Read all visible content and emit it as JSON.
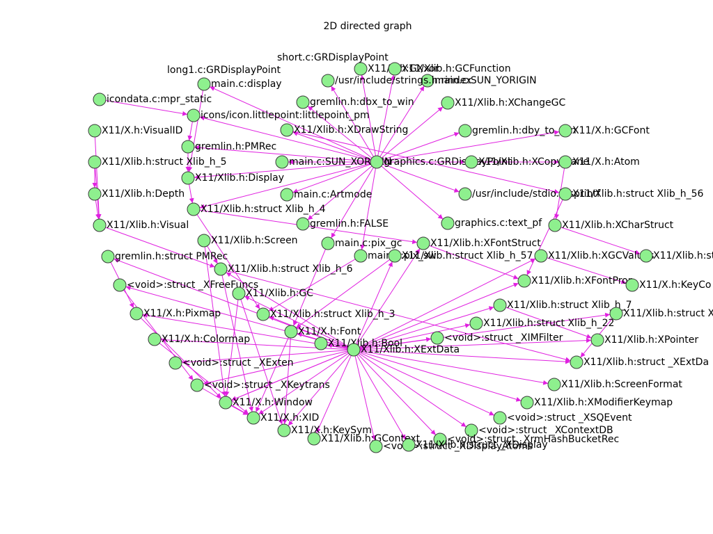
{
  "title": "2D directed graph",
  "nodes": [
    {
      "label": "short.c:GRDisplayPoint"
    },
    {
      "label": "long1.c:GRDisplayPoint"
    },
    {
      "label": "X11/X.h:GXxor"
    },
    {
      "label": "X11/Xlib.h:GCFunction"
    },
    {
      "label": "main.c:SUN_YORIGIN"
    },
    {
      "label": "/usr/include/strings.h:rindex"
    },
    {
      "label": "main.c:display"
    },
    {
      "label": "icondata.c:mpr_static"
    },
    {
      "label": "gremlin.h:dbx_to_win"
    },
    {
      "label": "X11/Xlib.h:XChangeGC"
    },
    {
      "label": "icons/icon.littlepoint:littlepoint_pm"
    },
    {
      "label": "X11/X.h:VisualID"
    },
    {
      "label": "X11/Xlib.h:XDrawString"
    },
    {
      "label": "gremlin.h:dby_to_win"
    },
    {
      "label": "X11/X.h:GCFont"
    },
    {
      "label": "gremlin.h:PMRec"
    },
    {
      "label": "X11/Xlib.h:struct Xlib_h_5"
    },
    {
      "label": "main.c:SUN_XORIGIN"
    },
    {
      "label": "graphics.c:GRDisplayPoint"
    },
    {
      "label": "X11/Xlib.h:XCopyPlane"
    },
    {
      "label": "X11/X.h:Atom"
    },
    {
      "label": "X11/Xlib.h:Display"
    },
    {
      "label": "X11/Xlib.h:Depth"
    },
    {
      "label": "main.c:Artmode"
    },
    {
      "label": "/usr/include/stdio.h:sprintf"
    },
    {
      "label": "X11/Xlib.h:struct Xlib_h_56"
    },
    {
      "label": "X11/Xlib.h:struct Xlib_h_4"
    },
    {
      "label": "X11/Xlib.h:Visual"
    },
    {
      "label": "gremlin.h:FALSE"
    },
    {
      "label": "graphics.c:text_pf"
    },
    {
      "label": "X11/Xlib.h:XCharStruct"
    },
    {
      "label": "X11/Xlib.h:Screen"
    },
    {
      "label": "main.c:pix_gc"
    },
    {
      "label": "X11/Xlib.h:XFontStruct"
    },
    {
      "label": "gremlin.h:struct PMRec"
    },
    {
      "label": "main.c:pix_sw"
    },
    {
      "label": "X11/Xlib.h:struct Xlib_h_57"
    },
    {
      "label": "X11/Xlib.h:XGCValues"
    },
    {
      "label": "X11/Xlib.h:st"
    },
    {
      "label": "X11/Xlib.h:struct Xlib_h_6"
    },
    {
      "label": "<void>:struct _XFreeFuncs"
    },
    {
      "label": "X11/Xlib.h:XFontProp"
    },
    {
      "label": "X11/X.h:KeyCo"
    },
    {
      "label": "X11/Xlib.h:GC"
    },
    {
      "label": "X11/Xlib.h:struct Xlib_h_7"
    },
    {
      "label": "X11/X.h:Pixmap"
    },
    {
      "label": "X11/Xlib.h:struct Xlib_h_3"
    },
    {
      "label": "X11/Xlib.h:struct X"
    },
    {
      "label": "X11/Xlib.h:struct Xlib_h_22"
    },
    {
      "label": "X11/X.h:Font"
    },
    {
      "label": "X11/X.h:Colormap"
    },
    {
      "label": "X11/Xlib.h:Bool"
    },
    {
      "label": "<void>:struct _XIMFilter"
    },
    {
      "label": "X11/Xlib.h:XPointer"
    },
    {
      "label": "X11/Xlib.h:XExtData"
    },
    {
      "label": "<void>:struct _XExten"
    },
    {
      "label": "X11/Xlib.h:struct _XExtDa"
    },
    {
      "label": "<void>:struct _XKeytrans"
    },
    {
      "label": "X11/Xlib.h:ScreenFormat"
    },
    {
      "label": "X11/X.h:Window"
    },
    {
      "label": "X11/Xlib.h:XModifierKeymap"
    },
    {
      "label": "X11/X.h:XID"
    },
    {
      "label": "<void>:struct _XSQEvent"
    },
    {
      "label": "X11/X.h:KeySym"
    },
    {
      "label": "<void>:struct _XContextDB"
    },
    {
      "label": "X11/Xlib.h:GContext"
    },
    {
      "label": "<void>:struct _XrmHashBucketRec"
    },
    {
      "label": "<void>:struct _XDisplayAtoms"
    },
    {
      "label": "X11/Xlib.h:struct _XDisplay"
    }
  ]
}
